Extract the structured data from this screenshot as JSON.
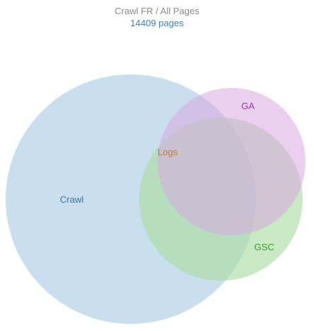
{
  "header": {
    "title": "Crawl FR / All Pages",
    "subtitle": "14409 pages"
  },
  "chart_data": {
    "type": "venn",
    "sets": [
      {
        "name": "Crawl",
        "color": "#a9cce3",
        "label_color": "#3a74a8"
      },
      {
        "name": "GSC",
        "color": "#a8dca0",
        "label_color": "#3e9b35"
      },
      {
        "name": "GA",
        "color": "#d8a8e0",
        "label_color": "#9b3aaa"
      },
      {
        "name": "Logs",
        "color": "#8fa7c8",
        "label_color": "#c07a35"
      }
    ]
  }
}
